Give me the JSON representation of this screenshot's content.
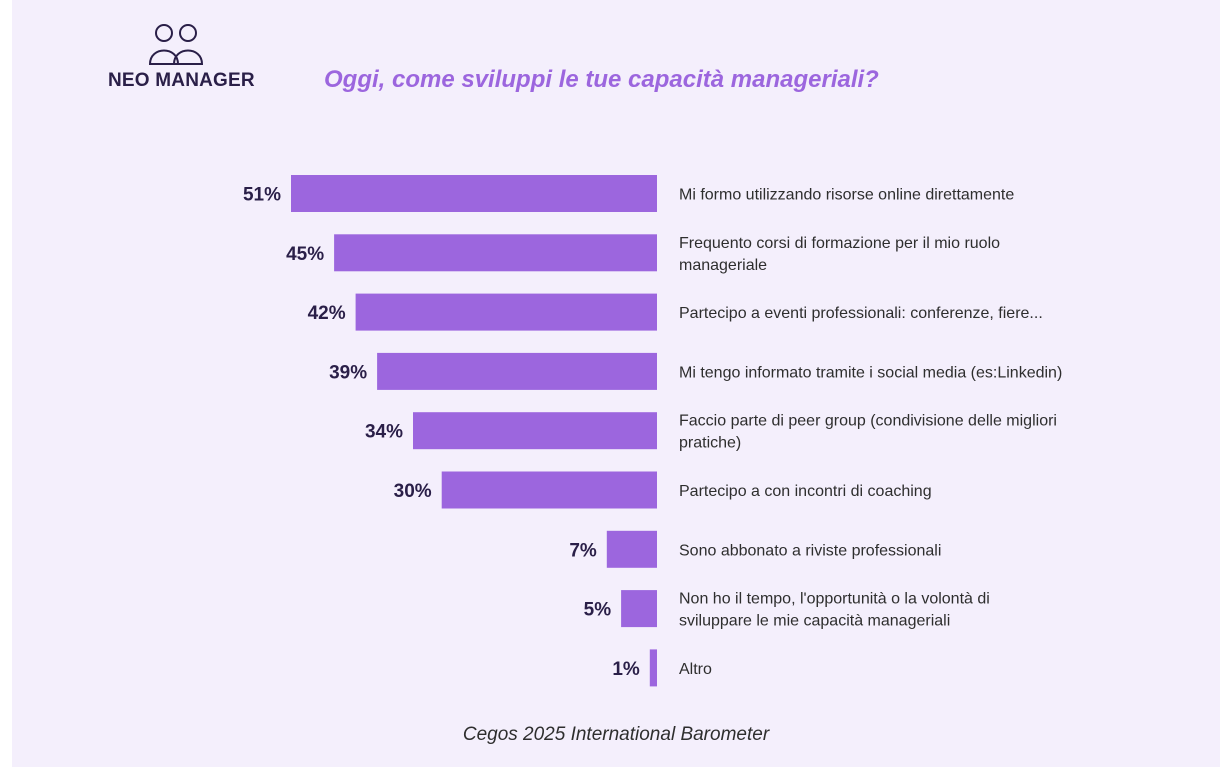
{
  "header": {
    "logo_text": "NEO MANAGER",
    "title": "Oggi, come sviluppi le tue capacità manageriali?"
  },
  "footer": {
    "source": "Cegos 2025 International Barometer"
  },
  "colors": {
    "bar": "#9c66de",
    "value_text": "#2a1f48",
    "label_text": "#2e2e2e",
    "background": "#f4effc"
  },
  "icons": {
    "logo": "two-people-icon"
  },
  "chart_data": {
    "type": "bar",
    "orientation": "horizontal",
    "title": "Oggi, come sviluppi le tue capacità manageriali?",
    "unit": "%",
    "categories": [
      [
        "Mi formo utilizzando risorse online direttamente"
      ],
      [
        "Frequento corsi di formazione per il mio ruolo",
        "manageriale"
      ],
      [
        "Partecipo a eventi professionali: conferenze, fiere..."
      ],
      [
        "Mi tengo informato tramite i social media (es:Linkedin)"
      ],
      [
        "Faccio parte di peer group (condivisione delle migliori",
        "pratiche)"
      ],
      [
        "Partecipo a con incontri di coaching"
      ],
      [
        "Sono abbonato a riviste professionali"
      ],
      [
        "Non ho il tempo, l'opportunità o la volontà di",
        "sviluppare le mie capacità manageriali"
      ],
      [
        "Altro"
      ]
    ],
    "values": [
      51,
      45,
      42,
      39,
      34,
      30,
      7,
      5,
      1
    ],
    "value_labels": [
      "51%",
      "45%",
      "42%",
      "39%",
      "34%",
      "30%",
      "7%",
      "5%",
      "1%"
    ],
    "xlim": [
      0,
      51
    ],
    "grid": false,
    "legend": "none"
  }
}
